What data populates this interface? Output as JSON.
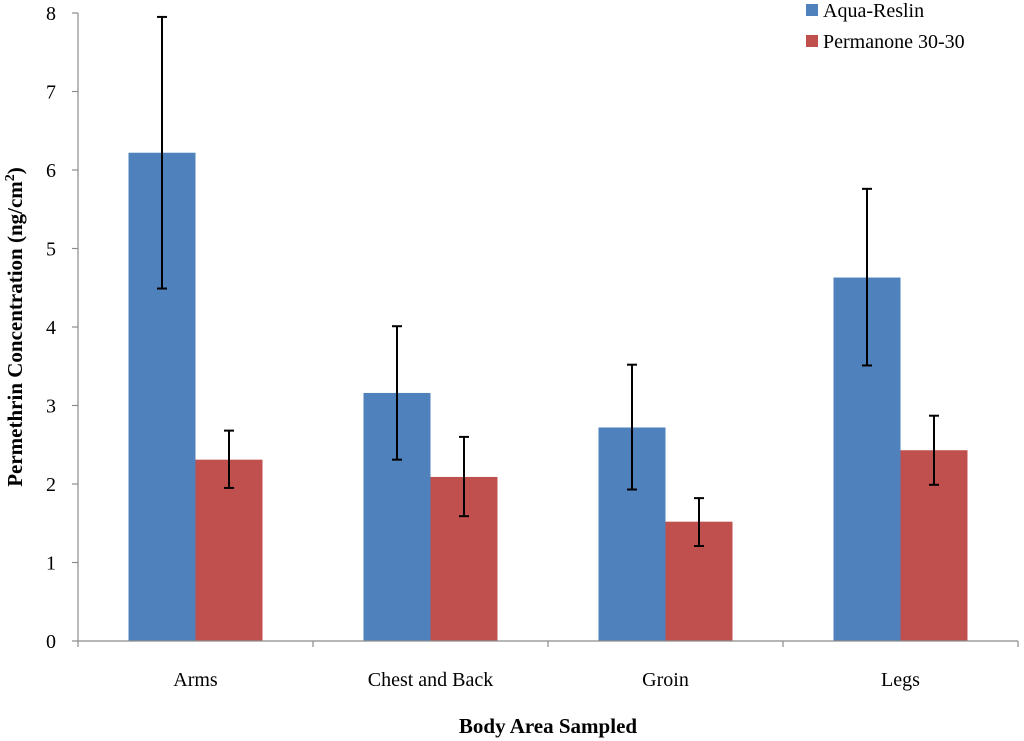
{
  "chart_data": {
    "type": "bar",
    "title": "",
    "xlabel": "Body Area Sampled",
    "ylabel": "Permethrin Concentration (ng/cm²)",
    "ylabel_parts": {
      "base": "Permethrin Concentration (ng/cm",
      "sup": "2",
      "close": ")"
    },
    "ylim": [
      0,
      8
    ],
    "yticks": [
      0,
      1,
      2,
      3,
      4,
      5,
      6,
      7,
      8
    ],
    "categories": [
      "Arms",
      "Chest and Back",
      "Groin",
      "Legs"
    ],
    "legend_position": "top-right",
    "grid": false,
    "series": [
      {
        "name": "Aqua-Reslin",
        "color": "#4f81bd",
        "values": [
          6.22,
          3.16,
          2.72,
          4.63
        ],
        "error_low": [
          4.49,
          2.31,
          1.93,
          3.51
        ],
        "error_high": [
          7.95,
          4.01,
          3.52,
          5.76
        ]
      },
      {
        "name": "Permanone 30-30",
        "color": "#c0504d",
        "values": [
          2.31,
          2.09,
          1.52,
          2.43
        ],
        "error_low": [
          1.95,
          1.59,
          1.21,
          1.99
        ],
        "error_high": [
          2.68,
          2.6,
          1.82,
          2.87
        ]
      }
    ]
  }
}
